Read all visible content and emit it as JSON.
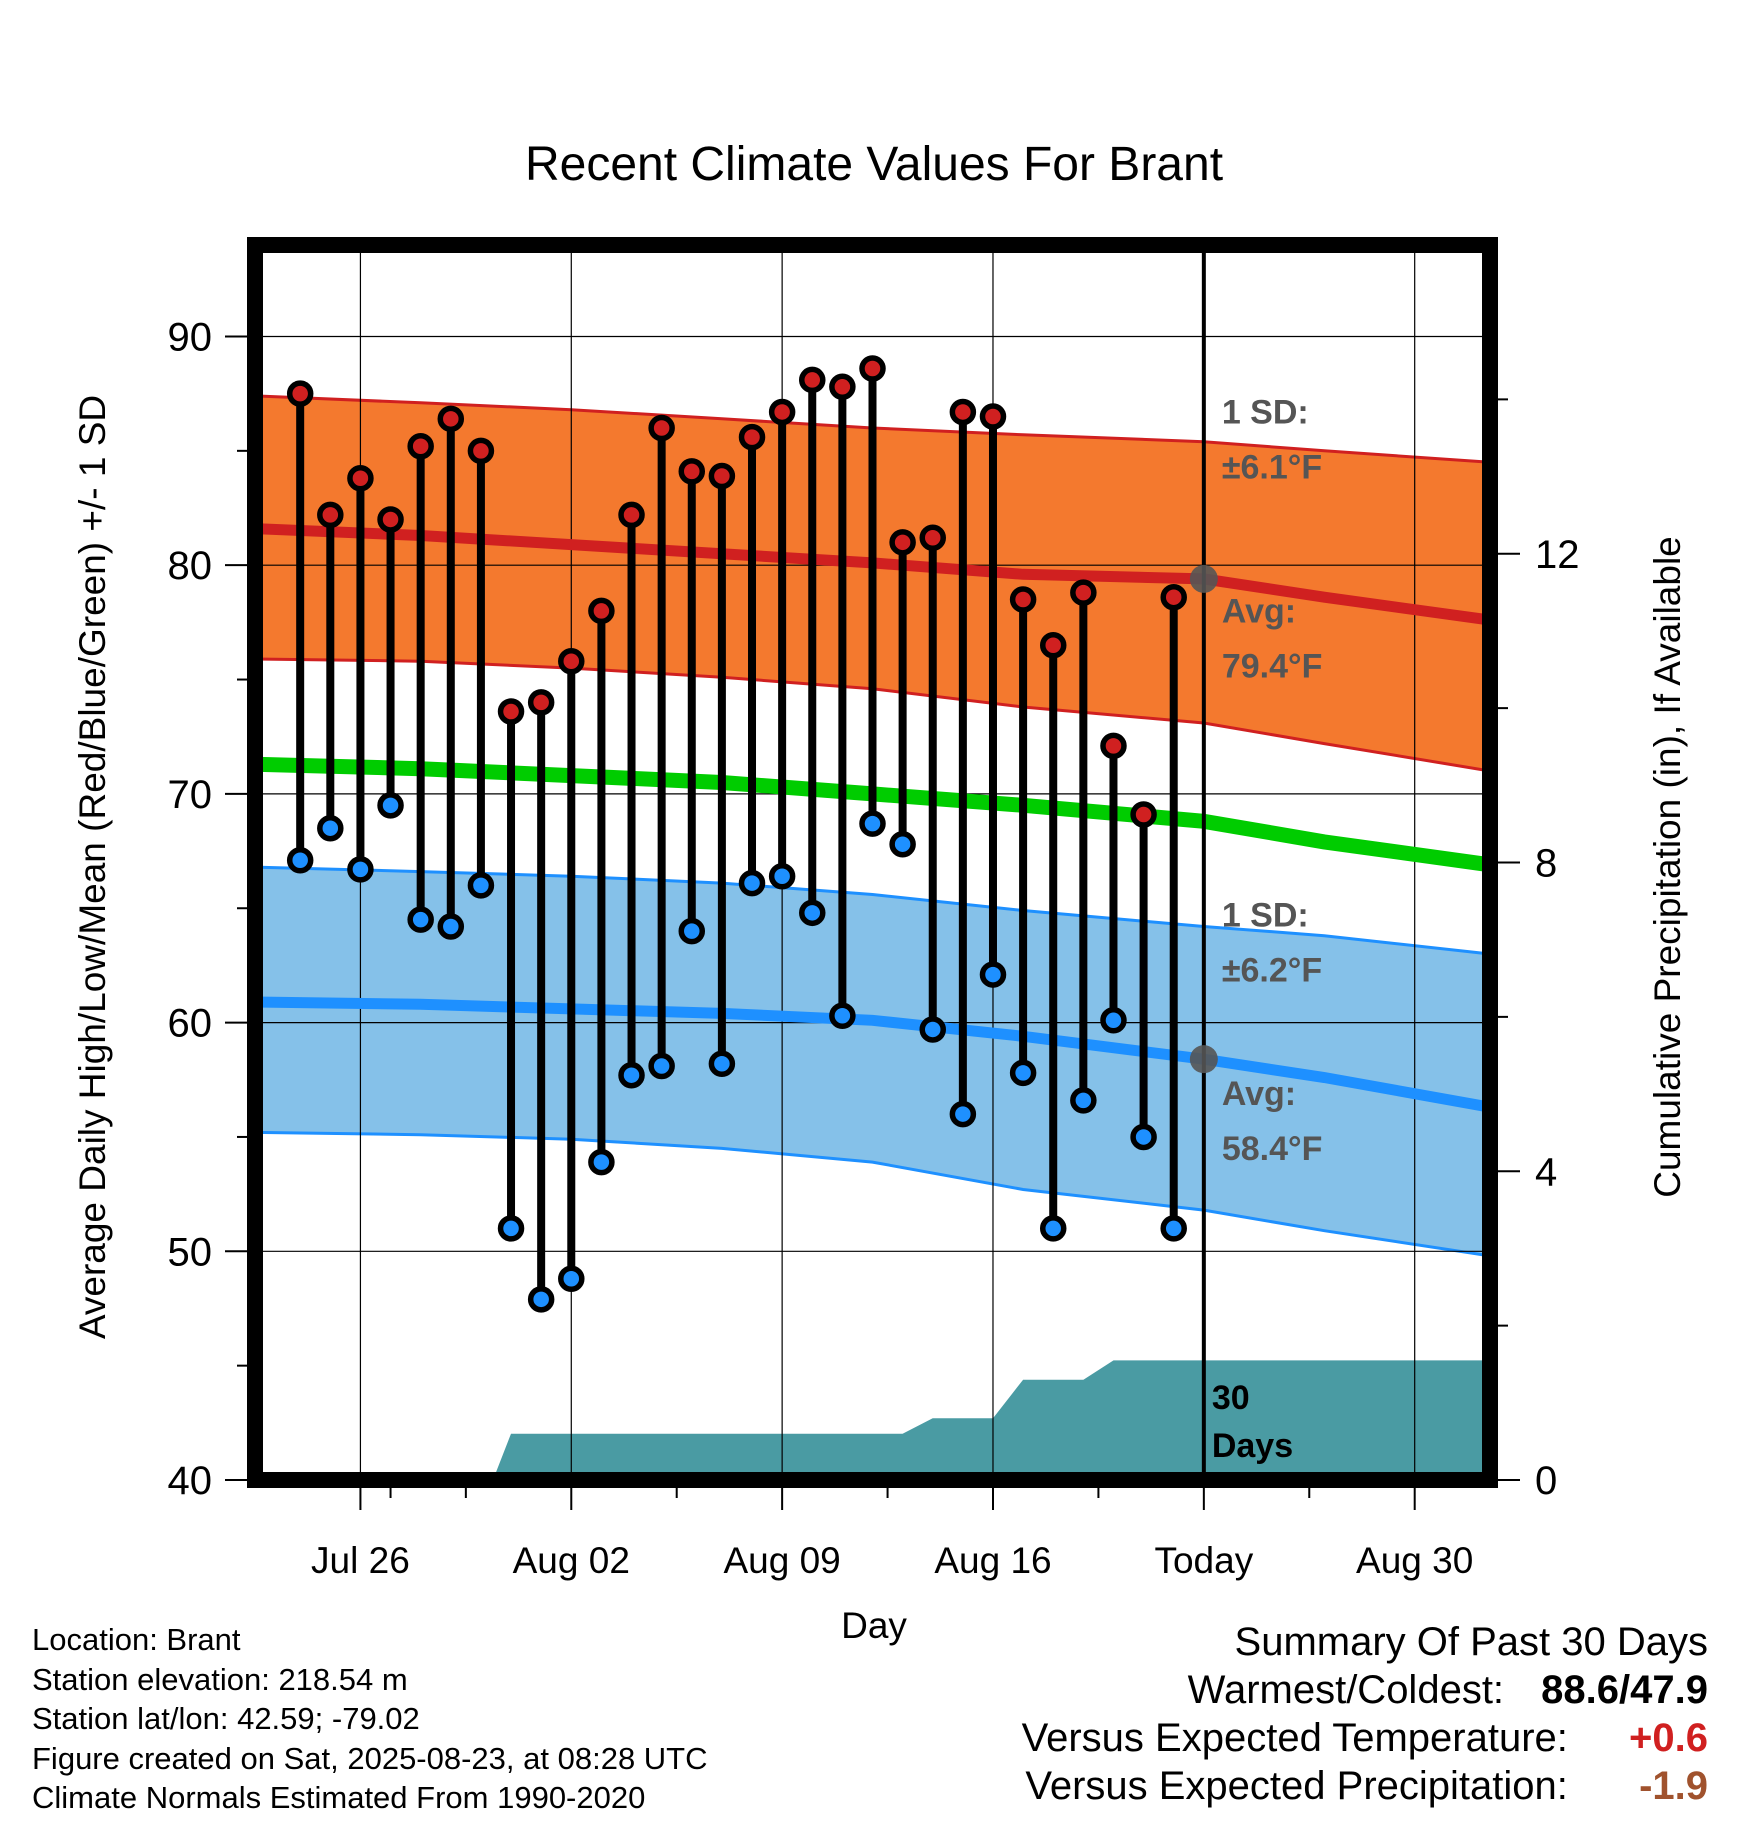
{
  "chart_data": {
    "type": "line",
    "title": "Recent Climate Values For Brant",
    "xlabel": "Day",
    "ylabel": "Average Daily High/Low/Mean (Red/Blue/Green) +/- 1 SD",
    "y2label": "Cumulative Precipitation (in), If Available",
    "ylim": [
      40,
      94
    ],
    "y2lim": [
      0,
      16
    ],
    "x_range_days": [
      -30.5,
      10.5
    ],
    "x_ticks": [
      {
        "day": -27,
        "label": "Jul 26"
      },
      {
        "day": -20,
        "label": "Aug 02"
      },
      {
        "day": -13,
        "label": "Aug 09"
      },
      {
        "day": -6,
        "label": "Aug 16"
      },
      {
        "day": 1,
        "label": "Today"
      },
      {
        "day": 8,
        "label": "Aug 30"
      }
    ],
    "y_ticks": [
      40,
      50,
      60,
      70,
      80,
      90
    ],
    "y2_ticks": [
      0,
      4,
      8,
      12
    ],
    "today_day": 1,
    "days": [
      -29,
      -28,
      -27,
      -26,
      -25,
      -24,
      -23,
      -22,
      -21,
      -20,
      -19,
      -18,
      -17,
      -16,
      -15,
      -14,
      -13,
      -12,
      -11,
      -10,
      -9,
      -8,
      -7,
      -6,
      -5,
      -4,
      -3,
      -2,
      -1,
      0
    ],
    "highs": [
      87.5,
      82.2,
      83.8,
      82.0,
      85.2,
      86.4,
      85.0,
      73.6,
      74.0,
      75.8,
      78.0,
      82.2,
      86.0,
      84.1,
      83.9,
      85.6,
      86.7,
      88.1,
      87.8,
      88.6,
      81.0,
      81.2,
      86.7,
      86.5,
      78.5,
      76.5,
      78.8,
      72.1,
      69.1,
      78.6
    ],
    "lows": [
      67.1,
      68.5,
      66.7,
      69.5,
      64.5,
      64.2,
      66.0,
      51.0,
      47.9,
      48.8,
      53.9,
      57.7,
      58.1,
      64.0,
      58.2,
      66.1,
      66.4,
      64.8,
      60.3,
      68.7,
      67.8,
      59.7,
      56.0,
      62.1,
      57.8,
      51.0,
      56.6,
      60.1,
      55.0,
      51.0
    ],
    "normals": {
      "days": [
        -30.5,
        -25,
        -20,
        -15,
        -10,
        -5,
        1,
        5,
        10.5
      ],
      "high": [
        81.6,
        81.3,
        80.9,
        80.5,
        80.1,
        79.6,
        79.4,
        78.6,
        77.6
      ],
      "mean": [
        71.3,
        71.1,
        70.8,
        70.5,
        70.0,
        69.5,
        68.8,
        67.9,
        66.9
      ],
      "low": [
        60.9,
        60.8,
        60.6,
        60.4,
        60.1,
        59.4,
        58.4,
        57.6,
        56.3
      ],
      "high_plus_sd": [
        87.4,
        87.1,
        86.8,
        86.4,
        86.0,
        85.7,
        85.4,
        85.0,
        84.5
      ],
      "high_minus_sd": [
        75.9,
        75.8,
        75.5,
        75.1,
        74.6,
        73.8,
        73.1,
        72.2,
        71.0
      ],
      "low_plus_sd": [
        66.8,
        66.6,
        66.4,
        66.1,
        65.6,
        64.9,
        64.2,
        63.8,
        63.0
      ],
      "low_minus_sd": [
        55.2,
        55.1,
        54.9,
        54.5,
        53.9,
        52.7,
        51.8,
        50.9,
        49.8
      ]
    },
    "precip_cumulative_days": [
      -30.5,
      -26,
      -25,
      -22.5,
      -22,
      -13,
      -9,
      -8,
      -6,
      -5,
      -3,
      -2,
      -1,
      10.5
    ],
    "precip_cumulative_in": [
      0,
      0,
      0.1,
      0.1,
      0.6,
      0.6,
      0.6,
      0.8,
      0.8,
      1.3,
      1.3,
      1.55,
      1.55,
      1.55
    ],
    "annotations": {
      "high_sd_label": "1 SD:",
      "high_sd_value": "±6.1",
      "high_avg_label": "Avg:",
      "high_avg_value": "79.4",
      "low_sd_label": "1 SD:",
      "low_sd_value": "±6.2",
      "low_avg_label": "Avg:",
      "low_avg_value": "58.4",
      "degree_unit": "°F",
      "days_label_1": "30",
      "days_label_2": "Days"
    }
  },
  "colors": {
    "high_band": "#f4792e",
    "high_line": "#d02020",
    "mean_line": "#00cc00",
    "low_band": "#85c1e9",
    "low_line": "#1e90ff",
    "precip": "#4a9ba3",
    "annotation": "#555555",
    "summary_temp": "#d02020",
    "summary_precip": "#a0522d"
  },
  "footer": {
    "location": "Location: Brant",
    "elevation": "Station elevation: 218.54 m",
    "latlon": "Station lat/lon: 42.59; -79.02",
    "created": "Figure created on Sat, 2025-08-23, at 08:28 UTC",
    "normals": "Climate Normals Estimated From 1990-2020"
  },
  "summary": {
    "title": "Summary Of Past 30 Days",
    "warm_cold_label": "Warmest/Coldest:",
    "warm_cold_value": "88.6/47.9",
    "temp_label": "Versus Expected Temperature:",
    "temp_value": "+0.6",
    "precip_label": "Versus Expected Precipitation:",
    "precip_value": "-1.9"
  }
}
